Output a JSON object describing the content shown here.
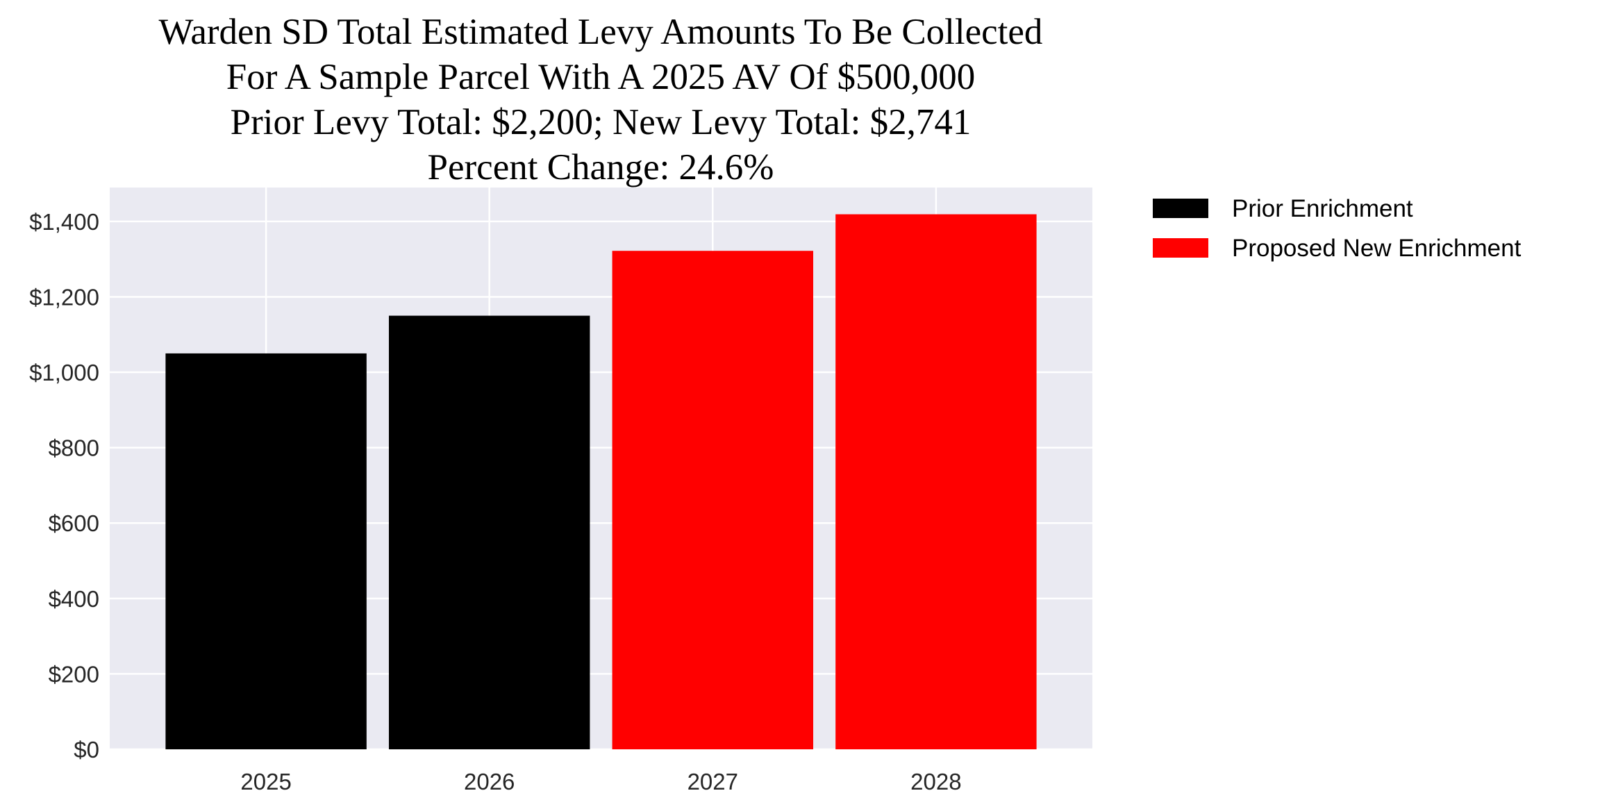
{
  "chart_data": {
    "type": "bar",
    "title_lines": [
      "Warden SD Total Estimated Levy Amounts To Be Collected",
      "For A Sample Parcel With A 2025 AV Of $500,000",
      "Prior Levy Total:  $2,200; New Levy Total: $2,741",
      "Percent Change: 24.6%"
    ],
    "categories": [
      "2025",
      "2026",
      "2027",
      "2028"
    ],
    "values": [
      1050,
      1150,
      1322,
      1419
    ],
    "bar_series": [
      "Prior Enrichment",
      "Prior Enrichment",
      "Proposed New Enrichment",
      "Proposed New Enrichment"
    ],
    "series": [
      {
        "name": "Prior Enrichment",
        "color": "#000000"
      },
      {
        "name": "Proposed New Enrichment",
        "color": "#ff0000"
      }
    ],
    "xlabel": "",
    "ylabel": "",
    "ylim": [
      0,
      1490
    ],
    "yticks": [
      0,
      200,
      400,
      600,
      800,
      1000,
      1200,
      1400
    ],
    "ytick_labels": [
      "$0",
      "$200",
      "$400",
      "$600",
      "$800",
      "$1,000",
      "$1,200",
      "$1,400"
    ],
    "grid": true,
    "plot_background": "#eaeaf2",
    "legend_placement": "outside-top-right"
  }
}
